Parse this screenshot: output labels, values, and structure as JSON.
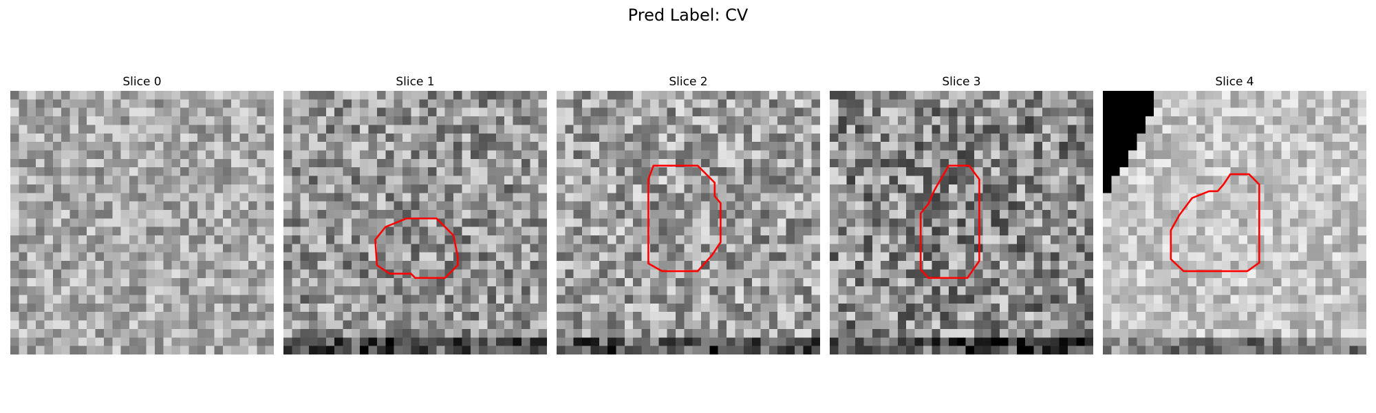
{
  "figure": {
    "suptitle": "Pred Label: CV"
  },
  "slices": [
    {
      "label": "Slice 0",
      "seed": 11,
      "contour": false
    },
    {
      "label": "Slice 1",
      "seed": 23,
      "contour": true
    },
    {
      "label": "Slice 2",
      "seed": 37,
      "contour": true
    },
    {
      "label": "Slice 3",
      "seed": 41,
      "contour": true
    },
    {
      "label": "Slice 4",
      "seed": 59,
      "contour": true
    }
  ],
  "colors": {
    "contour": "#ff0000",
    "background": "#ffffff"
  }
}
